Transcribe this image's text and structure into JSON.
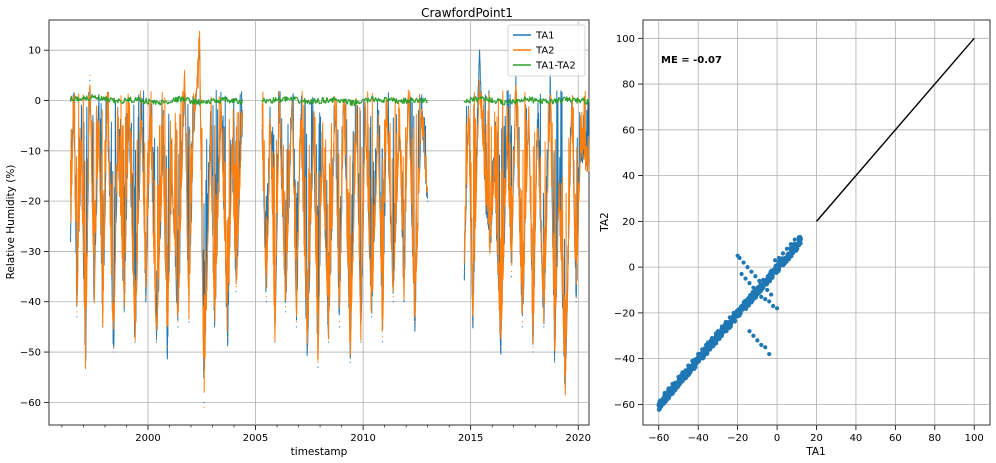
{
  "chart_data": [
    {
      "type": "line",
      "title": "CrawfordPoint1",
      "xlabel": "timestamp",
      "ylabel": "Relative Humidity (%)",
      "xlim": [
        1995.4,
        2020.5
      ],
      "ylim": [
        -64.5,
        16
      ],
      "xticks": [
        2000,
        2005,
        2010,
        2015,
        2020
      ],
      "xtick_labels": [
        "2000",
        "2005",
        "2010",
        "2015",
        "2020"
      ],
      "yticks": [
        -60,
        -50,
        -40,
        -30,
        -20,
        -10,
        0,
        10
      ],
      "ytick_labels": [
        "−60",
        "−50",
        "−40",
        "−30",
        "−20",
        "−10",
        "0",
        "10"
      ],
      "grid": true,
      "legend_placement": "top-right",
      "data_segments": [
        [
          1996.4,
          2004.4
        ],
        [
          2005.3,
          2013.0
        ],
        [
          2014.7,
          2020.5
        ]
      ],
      "series": [
        {
          "name": "TA1",
          "color": "#1f77b4",
          "x": [
            1996.4,
            1996.55,
            1996.7,
            1996.9,
            1997.1,
            1997.3,
            1997.5,
            1997.7,
            1997.9,
            1998.1,
            1998.4,
            1998.6,
            1998.9,
            1999.1,
            1999.4,
            1999.7,
            1999.9,
            2000.1,
            2000.4,
            2000.7,
            2000.9,
            2001.1,
            2001.4,
            2001.7,
            2001.9,
            2002.1,
            2002.4,
            2002.6,
            2002.9,
            2003.1,
            2003.4,
            2003.7,
            2003.9,
            2004.1,
            2004.4,
            2005.3,
            2005.5,
            2005.7,
            2005.9,
            2006.1,
            2006.4,
            2006.7,
            2006.9,
            2007.1,
            2007.4,
            2007.7,
            2007.9,
            2008.1,
            2008.4,
            2008.7,
            2008.9,
            2009.1,
            2009.4,
            2009.7,
            2009.9,
            2010.1,
            2010.4,
            2010.7,
            2010.9,
            2011.1,
            2011.4,
            2011.7,
            2011.9,
            2012.1,
            2012.4,
            2012.7,
            2013.0,
            2014.7,
            2014.9,
            2015.1,
            2015.4,
            2015.7,
            2015.9,
            2016.1,
            2016.4,
            2016.7,
            2016.9,
            2017.1,
            2017.4,
            2017.7,
            2017.9,
            2018.1,
            2018.4,
            2018.7,
            2018.9,
            2019.1,
            2019.4,
            2019.7,
            2019.9,
            2020.1,
            2020.5
          ],
          "y": [
            -28,
            0,
            -43,
            -10,
            -53,
            4,
            -40,
            -5,
            -45,
            0,
            -50,
            -8,
            -42,
            -3,
            -48,
            -2,
            -40,
            -5,
            -48,
            -10,
            -50,
            -15,
            -45,
            5,
            -44,
            -8,
            12,
            -60,
            -8,
            -45,
            -2,
            -48,
            -10,
            -38,
            -2,
            -5,
            -40,
            -5,
            -48,
            -2,
            -42,
            0,
            -45,
            -3,
            -50,
            -5,
            -53,
            -8,
            -48,
            -2,
            -45,
            0,
            -52,
            -3,
            -48,
            -2,
            -43,
            -5,
            -48,
            0,
            -40,
            -5,
            -40,
            2,
            -45,
            -3,
            -20,
            -35,
            -2,
            -45,
            10,
            -20,
            -30,
            -15,
            -50,
            -8,
            -35,
            3,
            -45,
            -2,
            -50,
            -5,
            -45,
            5,
            -52,
            -20,
            -58,
            0,
            -40,
            -10,
            -15
          ]
        },
        {
          "name": "TA2",
          "color": "#ff7f0e",
          "x": [
            1996.4,
            1996.55,
            1996.7,
            1996.9,
            1997.1,
            1997.3,
            1997.5,
            1997.7,
            1997.9,
            1998.1,
            1998.4,
            1998.6,
            1998.9,
            1999.1,
            1999.4,
            1999.7,
            1999.9,
            2000.1,
            2000.4,
            2000.7,
            2000.9,
            2001.1,
            2001.4,
            2001.7,
            2001.9,
            2002.1,
            2002.4,
            2002.6,
            2002.9,
            2003.1,
            2003.4,
            2003.7,
            2003.9,
            2004.1,
            2004.4,
            2005.3,
            2005.5,
            2005.7,
            2005.9,
            2006.1,
            2006.4,
            2006.7,
            2006.9,
            2007.1,
            2007.4,
            2007.7,
            2007.9,
            2008.1,
            2008.4,
            2008.7,
            2008.9,
            2009.1,
            2009.4,
            2009.7,
            2009.9,
            2010.1,
            2010.4,
            2010.7,
            2010.9,
            2011.1,
            2011.4,
            2011.7,
            2011.9,
            2012.1,
            2012.4,
            2012.7,
            2013.0,
            2014.7,
            2014.9,
            2015.1,
            2015.4,
            2015.7,
            2015.9,
            2016.1,
            2016.4,
            2016.7,
            2016.9,
            2017.1,
            2017.4,
            2017.7,
            2017.9,
            2018.1,
            2018.4,
            2018.7,
            2018.9,
            2019.1,
            2019.4,
            2019.7,
            2019.9,
            2020.1,
            2020.5
          ],
          "y": [
            -27,
            0,
            -42,
            -10,
            -52,
            5,
            -39,
            -5,
            -44,
            0,
            -49,
            -8,
            -41,
            -3,
            -47,
            -2,
            -39,
            -5,
            -47,
            -10,
            -49,
            -15,
            -44,
            6,
            -43,
            -8,
            13,
            -61,
            -8,
            -44,
            -2,
            -47,
            -10,
            -37,
            -2,
            -5,
            -39,
            -5,
            -47,
            -2,
            -41,
            0,
            -44,
            -3,
            -49,
            -5,
            -52,
            -8,
            -47,
            -2,
            -44,
            0,
            -51,
            -3,
            -47,
            -2,
            -42,
            -5,
            -47,
            0,
            -39,
            -5,
            -39,
            2,
            -44,
            -3,
            -19,
            -34,
            -2,
            -44,
            3,
            -19,
            -29,
            -14,
            -49,
            -8,
            -34,
            2,
            -44,
            -2,
            -49,
            -5,
            -44,
            0,
            -51,
            -19,
            -57,
            0,
            -39,
            -10,
            -14
          ]
        },
        {
          "name": "TA1-TA2",
          "color": "#2ca02c",
          "x": [
            1996.4,
            1997.5,
            1998.5,
            1999.5,
            2000.5,
            2001.5,
            2002.5,
            2003.5,
            2004.4,
            2005.3,
            2006.5,
            2007.5,
            2008.5,
            2009.5,
            2010.5,
            2011.5,
            2013.0,
            2014.7,
            2015.5,
            2016.5,
            2017.5,
            2018.5,
            2019.5,
            2020.5
          ],
          "y": [
            0.3,
            0.6,
            -0.2,
            0.2,
            -0.5,
            0.3,
            -0.4,
            0.1,
            -0.3,
            -0.1,
            0.3,
            -0.3,
            0.2,
            -0.5,
            0.3,
            -0.1,
            0.0,
            -0.2,
            0.5,
            -0.4,
            0.3,
            -0.3,
            0.2,
            -0.2
          ]
        }
      ]
    },
    {
      "type": "scatter",
      "title": "",
      "xlabel": "TA1",
      "ylabel": "TA2",
      "xlim": [
        -68,
        108
      ],
      "ylim": [
        -69,
        108
      ],
      "xticks": [
        -60,
        -40,
        -20,
        0,
        20,
        40,
        60,
        80,
        100
      ],
      "xtick_labels": [
        "−60",
        "−40",
        "−20",
        "0",
        "20",
        "40",
        "60",
        "80",
        "100"
      ],
      "yticks": [
        -60,
        -40,
        -20,
        0,
        20,
        40,
        60,
        80,
        100
      ],
      "ytick_labels": [
        "−60",
        "−40",
        "−20",
        "0",
        "20",
        "40",
        "60",
        "80",
        "100"
      ],
      "grid": true,
      "annotation": "ME = -0.07",
      "color": "#1f77b4",
      "reference_line": {
        "x": [
          20,
          100
        ],
        "y": [
          20,
          100
        ],
        "color": "#000000"
      },
      "points": {
        "x": [
          -60,
          -58,
          -56,
          -54,
          -52,
          -50,
          -48,
          -46,
          -44,
          -42,
          -40,
          -38,
          -36,
          -34,
          -32,
          -30,
          -28,
          -26,
          -24,
          -22,
          -20,
          -18,
          -16,
          -14,
          -12,
          -10,
          -8,
          -6,
          -4,
          -2,
          0,
          2,
          4,
          6,
          8,
          10,
          12,
          -20,
          -19,
          -17,
          -15,
          -13,
          -11,
          -9,
          -7,
          -5,
          -3,
          -18,
          -16,
          -14,
          -12,
          -10,
          -8,
          -6,
          -4,
          -2,
          0,
          -14,
          -12,
          -10,
          -8,
          -6,
          -4,
          -30,
          -28,
          -26,
          -24,
          -22,
          -35,
          -33,
          -31,
          -40,
          -38,
          -36,
          -45,
          -43,
          -50,
          -48,
          -55,
          -53,
          -57,
          -1,
          1,
          3,
          5,
          7,
          9,
          11,
          -3,
          -5,
          -7,
          -9,
          -11,
          -13,
          -24,
          -26,
          -28,
          -32,
          -34,
          -36,
          -42,
          -44,
          -46
        ],
        "y": [
          -60,
          -58,
          -56,
          -54,
          -52,
          -50,
          -48,
          -46,
          -44,
          -42,
          -40,
          -38,
          -36,
          -34,
          -32,
          -30,
          -28,
          -26,
          -24,
          -22,
          -20,
          -18,
          -16,
          -14,
          -12,
          -10,
          -8,
          -6,
          -4,
          -2,
          0,
          2,
          4,
          6,
          8,
          10,
          12,
          5,
          4,
          2,
          0,
          -2,
          -4,
          -6,
          -8,
          -10,
          -12,
          -3,
          -5,
          -7,
          -9,
          -11,
          -13,
          -14,
          -15,
          -17,
          -18,
          -28,
          -30,
          -32,
          -34,
          -35,
          -38,
          -28,
          -26,
          -24,
          -22,
          -20,
          -33,
          -31,
          -29,
          -38,
          -36,
          -34,
          -43,
          -41,
          -48,
          -46,
          -53,
          -51,
          -55,
          3,
          4,
          6,
          8,
          10,
          12,
          13,
          -5,
          -7,
          -9,
          -11,
          -13,
          -15,
          -26,
          -28,
          -30,
          -34,
          -36,
          -38,
          -44,
          -46,
          -48
        ]
      }
    }
  ]
}
